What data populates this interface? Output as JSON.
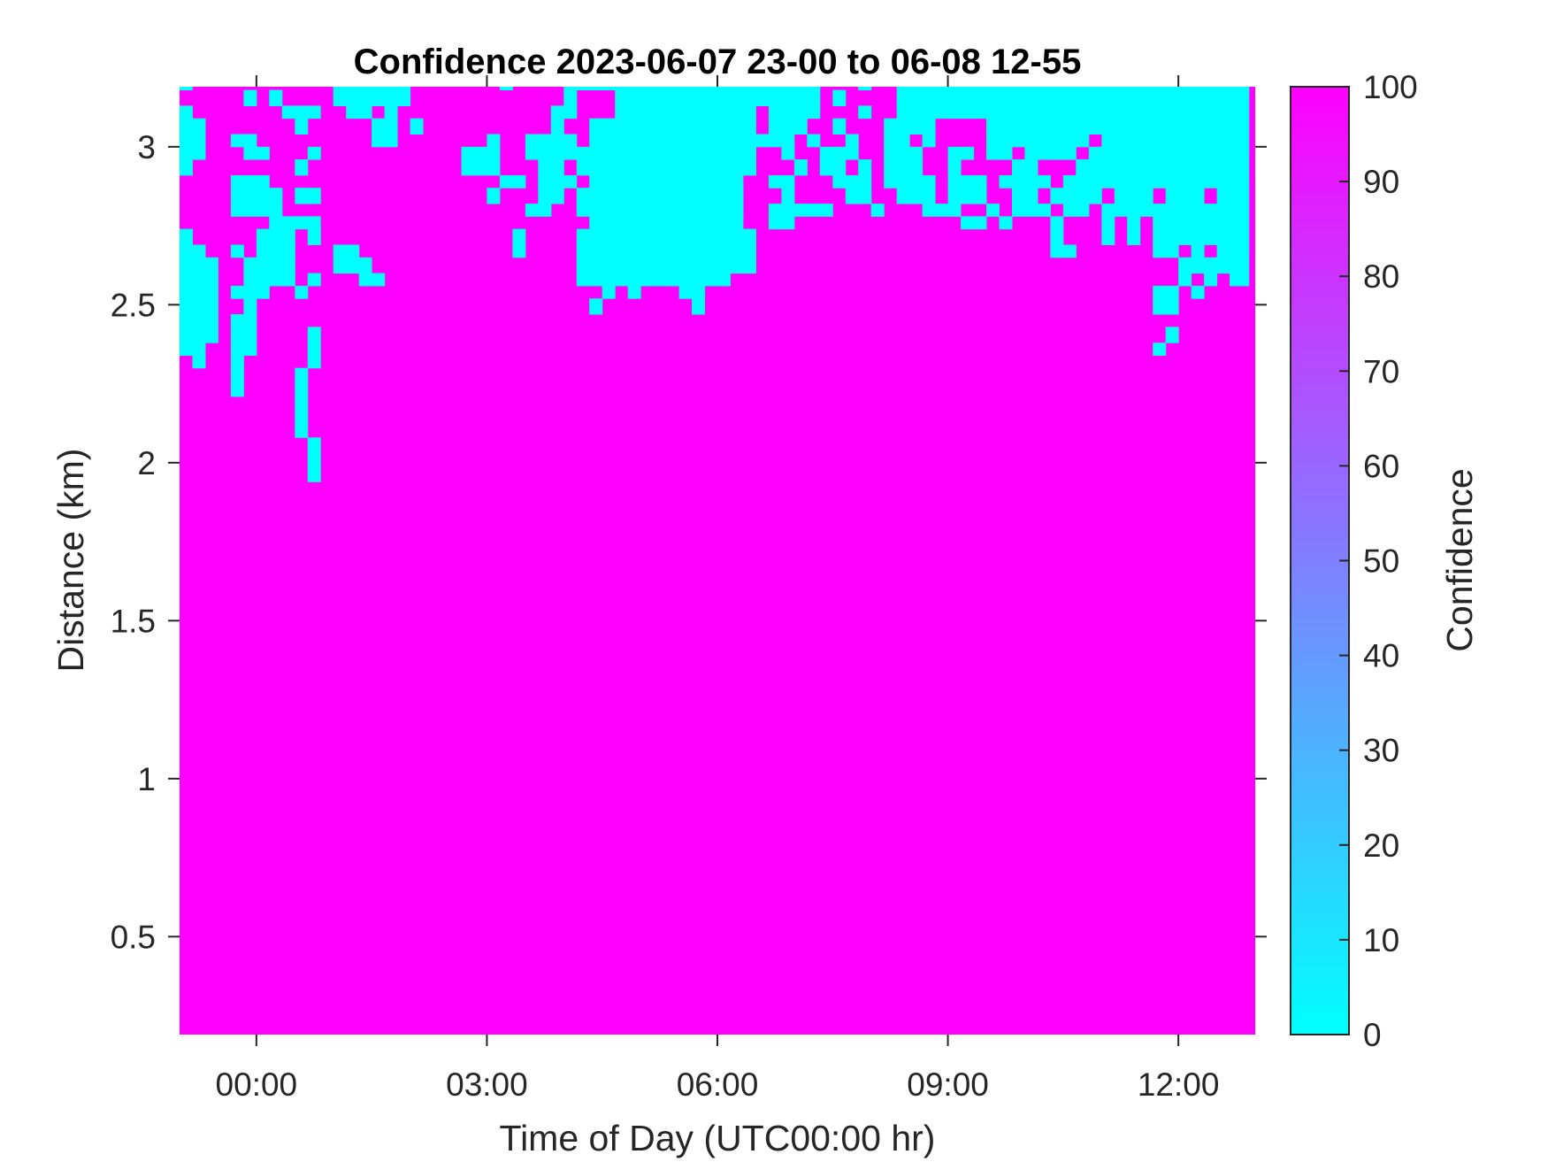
{
  "chart_data": {
    "type": "heatmap",
    "title": "Confidence 2023-06-07 23-00 to 06-08 12-55",
    "xlabel": "Time of Day (UTC00:00 hr)",
    "ylabel": "Distance (km)",
    "xlim": [
      "23:00",
      "13:00"
    ],
    "ylim": [
      0.19,
      3.19
    ],
    "xticks": [
      "00:00",
      "03:00",
      "06:00",
      "09:00",
      "12:00"
    ],
    "yticks": [
      "0.5",
      "1",
      "1.5",
      "2",
      "2.5",
      "3"
    ],
    "grid": false,
    "colorbar": {
      "label": "Confidence",
      "range": [
        0,
        100
      ],
      "ticks": [
        "0",
        "10",
        "20",
        "30",
        "40",
        "50",
        "60",
        "70",
        "80",
        "90",
        "100"
      ],
      "colormap": "cool",
      "low_color": "#00ffff",
      "high_color": "#ff00ff"
    },
    "background_confidence": 100,
    "cell_confidence": 0,
    "confidence_0_cells": [
      {
        "km": [
          3.18,
          3.19
        ],
        "times": [
          [
            "23:00",
            "23:10"
          ],
          [
            "01:00",
            "02:00"
          ],
          [
            "03:10",
            "03:20"
          ],
          [
            "04:00",
            "07:20"
          ],
          [
            "07:50",
            "08:00"
          ],
          [
            "08:20",
            "12:55"
          ]
        ]
      },
      {
        "km": [
          3.13,
          3.18
        ],
        "times": [
          [
            "23:50",
            "00:00"
          ],
          [
            "00:10",
            "00:20"
          ],
          [
            "01:00",
            "02:00"
          ],
          [
            "04:00",
            "04:10"
          ],
          [
            "04:40",
            "07:20"
          ],
          [
            "07:30",
            "07:40"
          ],
          [
            "08:20",
            "12:55"
          ]
        ]
      },
      {
        "km": [
          3.09,
          3.13
        ],
        "times": [
          [
            "23:00",
            "23:10"
          ],
          [
            "00:20",
            "00:50"
          ],
          [
            "01:10",
            "01:30"
          ],
          [
            "01:40",
            "01:50"
          ],
          [
            "03:50",
            "04:10"
          ],
          [
            "04:40",
            "06:30"
          ],
          [
            "06:40",
            "07:20"
          ],
          [
            "07:50",
            "08:00"
          ],
          [
            "08:20",
            "12:55"
          ]
        ]
      },
      {
        "km": [
          3.04,
          3.09
        ],
        "times": [
          [
            "23:00",
            "23:20"
          ],
          [
            "00:30",
            "00:40"
          ],
          [
            "01:30",
            "01:50"
          ],
          [
            "02:00",
            "02:10"
          ],
          [
            "03:50",
            "04:00"
          ],
          [
            "04:20",
            "06:30"
          ],
          [
            "06:40",
            "07:10"
          ],
          [
            "07:30",
            "07:40"
          ],
          [
            "08:10",
            "08:50"
          ],
          [
            "09:30",
            "12:55"
          ]
        ]
      },
      {
        "km": [
          3.0,
          3.04
        ],
        "times": [
          [
            "23:00",
            "23:20"
          ],
          [
            "23:40",
            "00:00"
          ],
          [
            "01:30",
            "01:50"
          ],
          [
            "03:00",
            "03:10"
          ],
          [
            "03:30",
            "04:10"
          ],
          [
            "04:20",
            "07:00"
          ],
          [
            "07:10",
            "07:20"
          ],
          [
            "07:40",
            "07:50"
          ],
          [
            "08:10",
            "08:30"
          ],
          [
            "08:40",
            "08:50"
          ],
          [
            "09:30",
            "10:50"
          ],
          [
            "11:00",
            "12:55"
          ]
        ]
      },
      {
        "km": [
          2.96,
          3.0
        ],
        "times": [
          [
            "23:00",
            "23:20"
          ],
          [
            "23:50",
            "00:10"
          ],
          [
            "00:40",
            "00:50"
          ],
          [
            "02:40",
            "03:10"
          ],
          [
            "03:30",
            "06:30"
          ],
          [
            "06:50",
            "07:00"
          ],
          [
            "07:20",
            "07:50"
          ],
          [
            "08:10",
            "08:40"
          ],
          [
            "09:00",
            "09:20"
          ],
          [
            "09:30",
            "09:50"
          ],
          [
            "10:00",
            "10:40"
          ],
          [
            "10:50",
            "12:55"
          ]
        ]
      },
      {
        "km": [
          2.91,
          2.96
        ],
        "times": [
          [
            "23:00",
            "23:10"
          ],
          [
            "00:30",
            "00:40"
          ],
          [
            "02:40",
            "03:10"
          ],
          [
            "03:40",
            "04:00"
          ],
          [
            "04:10",
            "06:30"
          ],
          [
            "07:00",
            "07:10"
          ],
          [
            "07:20",
            "07:40"
          ],
          [
            "07:50",
            "08:00"
          ],
          [
            "08:10",
            "08:40"
          ],
          [
            "09:00",
            "09:10"
          ],
          [
            "09:50",
            "10:10"
          ],
          [
            "10:40",
            "12:55"
          ]
        ]
      },
      {
        "km": [
          2.87,
          2.91
        ],
        "times": [
          [
            "23:40",
            "00:10"
          ],
          [
            "03:10",
            "03:30"
          ],
          [
            "03:40",
            "04:10"
          ],
          [
            "04:20",
            "06:20"
          ],
          [
            "06:40",
            "07:00"
          ],
          [
            "07:30",
            "08:00"
          ],
          [
            "08:10",
            "08:50"
          ],
          [
            "09:00",
            "09:30"
          ],
          [
            "09:40",
            "10:20"
          ],
          [
            "10:30",
            "12:55"
          ]
        ]
      },
      {
        "km": [
          2.82,
          2.87
        ],
        "times": [
          [
            "23:40",
            "00:20"
          ],
          [
            "00:30",
            "00:50"
          ],
          [
            "03:00",
            "03:10"
          ],
          [
            "03:40",
            "04:00"
          ],
          [
            "04:10",
            "06:20"
          ],
          [
            "06:50",
            "07:00"
          ],
          [
            "07:40",
            "08:00"
          ],
          [
            "08:20",
            "08:50"
          ],
          [
            "09:00",
            "09:30"
          ],
          [
            "09:50",
            "10:10"
          ],
          [
            "10:20",
            "11:00"
          ],
          [
            "11:10",
            "11:40"
          ],
          [
            "11:50",
            "12:20"
          ],
          [
            "12:30",
            "12:55"
          ]
        ]
      },
      {
        "km": [
          2.78,
          2.82
        ],
        "times": [
          [
            "23:40",
            "00:20"
          ],
          [
            "03:30",
            "03:50"
          ],
          [
            "04:10",
            "06:20"
          ],
          [
            "06:40",
            "07:30"
          ],
          [
            "08:00",
            "08:10"
          ],
          [
            "08:40",
            "09:10"
          ],
          [
            "09:30",
            "09:40"
          ],
          [
            "09:50",
            "10:20"
          ],
          [
            "10:30",
            "10:50"
          ],
          [
            "11:00",
            "12:55"
          ]
        ]
      },
      {
        "km": [
          2.74,
          2.78
        ],
        "times": [
          [
            "00:10",
            "00:50"
          ],
          [
            "04:20",
            "06:20"
          ],
          [
            "06:40",
            "07:00"
          ],
          [
            "09:10",
            "09:30"
          ],
          [
            "09:40",
            "09:50"
          ],
          [
            "10:20",
            "10:30"
          ],
          [
            "11:00",
            "11:10"
          ],
          [
            "11:20",
            "11:30"
          ],
          [
            "11:40",
            "12:55"
          ]
        ]
      },
      {
        "km": [
          2.69,
          2.74
        ],
        "times": [
          [
            "23:00",
            "23:10"
          ],
          [
            "00:00",
            "00:30"
          ],
          [
            "00:40",
            "00:50"
          ],
          [
            "03:20",
            "03:30"
          ],
          [
            "04:10",
            "06:30"
          ],
          [
            "10:20",
            "10:30"
          ],
          [
            "11:00",
            "11:10"
          ],
          [
            "11:20",
            "11:30"
          ],
          [
            "11:40",
            "12:55"
          ]
        ]
      },
      {
        "km": [
          2.65,
          2.69
        ],
        "times": [
          [
            "23:00",
            "23:20"
          ],
          [
            "23:40",
            "23:50"
          ],
          [
            "00:00",
            "00:30"
          ],
          [
            "01:00",
            "01:20"
          ],
          [
            "03:20",
            "03:30"
          ],
          [
            "04:10",
            "06:30"
          ],
          [
            "10:20",
            "10:40"
          ],
          [
            "11:40",
            "12:00"
          ],
          [
            "12:10",
            "12:20"
          ],
          [
            "12:30",
            "12:55"
          ]
        ]
      },
      {
        "km": [
          2.6,
          2.65
        ],
        "times": [
          [
            "23:00",
            "23:30"
          ],
          [
            "23:50",
            "00:30"
          ],
          [
            "01:00",
            "01:30"
          ],
          [
            "04:10",
            "06:30"
          ],
          [
            "12:00",
            "12:55"
          ]
        ]
      },
      {
        "km": [
          2.56,
          2.6
        ],
        "times": [
          [
            "23:00",
            "23:30"
          ],
          [
            "23:50",
            "00:30"
          ],
          [
            "00:40",
            "00:50"
          ],
          [
            "01:20",
            "01:40"
          ],
          [
            "04:10",
            "06:10"
          ],
          [
            "12:00",
            "12:10"
          ],
          [
            "12:20",
            "12:30"
          ],
          [
            "12:40",
            "12:55"
          ]
        ]
      },
      {
        "km": [
          2.52,
          2.56
        ],
        "times": [
          [
            "23:00",
            "23:30"
          ],
          [
            "23:40",
            "00:10"
          ],
          [
            "00:30",
            "00:40"
          ],
          [
            "04:30",
            "04:40"
          ],
          [
            "04:50",
            "05:00"
          ],
          [
            "05:30",
            "05:50"
          ],
          [
            "11:40",
            "12:00"
          ],
          [
            "12:10",
            "12:20"
          ]
        ]
      },
      {
        "km": [
          2.47,
          2.52
        ],
        "times": [
          [
            "23:00",
            "23:30"
          ],
          [
            "23:50",
            "00:00"
          ],
          [
            "04:20",
            "04:30"
          ],
          [
            "05:40",
            "05:50"
          ],
          [
            "11:40",
            "12:00"
          ]
        ]
      },
      {
        "km": [
          2.43,
          2.47
        ],
        "times": [
          [
            "23:00",
            "23:30"
          ],
          [
            "23:40",
            "00:00"
          ]
        ]
      },
      {
        "km": [
          2.38,
          2.43
        ],
        "times": [
          [
            "23:00",
            "23:30"
          ],
          [
            "23:40",
            "00:00"
          ],
          [
            "00:40",
            "00:50"
          ],
          [
            "11:50",
            "12:00"
          ]
        ]
      },
      {
        "km": [
          2.34,
          2.38
        ],
        "times": [
          [
            "23:00",
            "23:20"
          ],
          [
            "23:40",
            "00:00"
          ],
          [
            "00:40",
            "00:50"
          ],
          [
            "11:40",
            "11:50"
          ]
        ]
      },
      {
        "km": [
          2.3,
          2.34
        ],
        "times": [
          [
            "23:10",
            "23:20"
          ],
          [
            "23:40",
            "23:50"
          ],
          [
            "00:40",
            "00:50"
          ]
        ]
      },
      {
        "km": [
          2.25,
          2.3
        ],
        "times": [
          [
            "23:40",
            "23:50"
          ],
          [
            "00:30",
            "00:40"
          ]
        ]
      },
      {
        "km": [
          2.21,
          2.25
        ],
        "times": [
          [
            "23:40",
            "23:50"
          ],
          [
            "00:30",
            "00:40"
          ]
        ]
      },
      {
        "km": [
          2.16,
          2.21
        ],
        "times": [
          [
            "00:30",
            "00:40"
          ]
        ]
      },
      {
        "km": [
          2.12,
          2.16
        ],
        "times": [
          [
            "00:30",
            "00:40"
          ]
        ]
      },
      {
        "km": [
          2.08,
          2.12
        ],
        "times": [
          [
            "00:30",
            "00:40"
          ]
        ]
      },
      {
        "km": [
          2.03,
          2.08
        ],
        "times": [
          [
            "00:40",
            "00:50"
          ]
        ]
      },
      {
        "km": [
          1.99,
          2.03
        ],
        "times": [
          [
            "00:40",
            "00:50"
          ]
        ]
      },
      {
        "km": [
          1.94,
          1.99
        ],
        "times": [
          [
            "00:40",
            "00:50"
          ]
        ]
      }
    ]
  }
}
